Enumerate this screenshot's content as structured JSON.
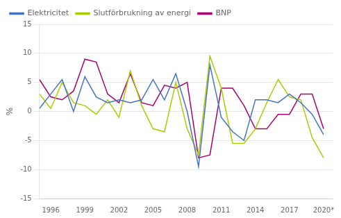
{
  "chart_data": {
    "type": "line",
    "ylabel": "%",
    "x": [
      1995,
      1996,
      1997,
      1998,
      1999,
      2000,
      2001,
      2002,
      2003,
      2004,
      2005,
      2006,
      2007,
      2008,
      2009,
      2010,
      2011,
      2012,
      2013,
      2014,
      2015,
      2016,
      2017,
      2018,
      2019,
      2020
    ],
    "series": [
      {
        "name": "Elektricitet",
        "color": "#4472C4",
        "values": [
          0.5,
          3.0,
          5.5,
          0.0,
          6.0,
          2.5,
          1.5,
          2.0,
          1.5,
          2.0,
          5.5,
          2.0,
          6.5,
          0.0,
          -9.5,
          8.0,
          -1.0,
          -3.5,
          -5.0,
          2.0,
          2.0,
          1.5,
          3.0,
          1.5,
          -0.5,
          -4.0
        ]
      },
      {
        "name": "Slutförbrukning av energi",
        "color": "#AACC00",
        "values": [
          3.0,
          0.5,
          5.0,
          1.5,
          1.0,
          -0.5,
          2.0,
          -1.0,
          7.0,
          1.0,
          -3.0,
          -3.5,
          5.0,
          -3.0,
          -7.5,
          9.5,
          4.0,
          -5.5,
          -5.5,
          -3.0,
          1.5,
          5.5,
          2.5,
          2.0,
          -4.5,
          -8.0
        ]
      },
      {
        "name": "BNP",
        "color": "#AA006E",
        "values": [
          5.5,
          2.5,
          2.0,
          3.5,
          9.0,
          8.5,
          3.0,
          1.5,
          6.5,
          1.5,
          1.0,
          4.5,
          4.0,
          5.0,
          -8.0,
          -7.5,
          4.0,
          4.0,
          1.0,
          -3.0,
          -3.0,
          -0.5,
          -0.5,
          3.0,
          3.0,
          -3.0
        ]
      }
    ],
    "xlim": [
      1995.0,
      2020.8
    ],
    "xticks": [
      1996,
      1999,
      2002,
      2005,
      2008,
      2011,
      2014,
      2017,
      {
        "value": 2020,
        "label": "2020*"
      }
    ],
    "ylim": [
      -15,
      15
    ],
    "yticks": [
      -15,
      -10,
      -5,
      0,
      5,
      10,
      15
    ],
    "grid": "y",
    "legend": "upper left"
  }
}
